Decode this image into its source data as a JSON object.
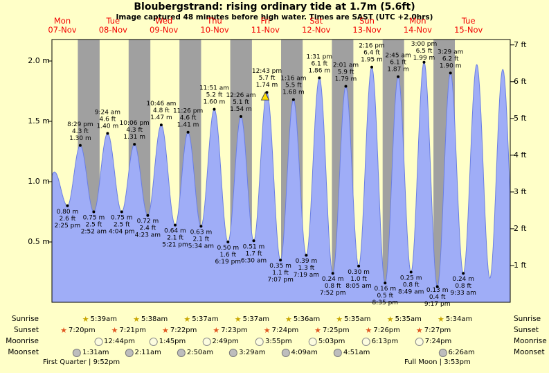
{
  "title": "Bloubergstrand: rising  ordinary tide at 1.7m (5.6ft)",
  "subtitle": "Image captured 48 minutes before high water. Times are SAST (UTC +2.0hrs)",
  "colors": {
    "background": "#ffffc8",
    "night_band": "#a0a0a0",
    "tide_fill": "#9fadf7",
    "tide_stroke": "#6b7fe3",
    "day_label": "#f20000",
    "current_marker": "#ffe000"
  },
  "days": [
    {
      "name": "Mon",
      "date": "07-Nov"
    },
    {
      "name": "Tue",
      "date": "08-Nov"
    },
    {
      "name": "Wed",
      "date": "09-Nov"
    },
    {
      "name": "Thu",
      "date": "10-Nov"
    },
    {
      "name": "Fri",
      "date": "11-Nov"
    },
    {
      "name": "Sat",
      "date": "12-Nov"
    },
    {
      "name": "Sun",
      "date": "13-Nov"
    },
    {
      "name": "Mon",
      "date": "14-Nov"
    },
    {
      "name": "Tue",
      "date": "15-Nov"
    }
  ],
  "y_axis_left": {
    "unit": "m",
    "ticks": [
      {
        "label": "0.5 m",
        "value": 0.5
      },
      {
        "label": "1.0 m",
        "value": 1.0
      },
      {
        "label": "1.5 m",
        "value": 1.5
      },
      {
        "label": "2.0 m",
        "value": 2.0
      }
    ]
  },
  "y_axis_right": {
    "unit": "ft",
    "ticks": [
      {
        "label": "1 ft",
        "value": 1
      },
      {
        "label": "2 ft",
        "value": 2
      },
      {
        "label": "3 ft",
        "value": 3
      },
      {
        "label": "4 ft",
        "value": 4
      },
      {
        "label": "5 ft",
        "value": 5
      },
      {
        "label": "6 ft",
        "value": 6
      },
      {
        "label": "7 ft",
        "value": 7
      }
    ]
  },
  "chart_data": {
    "type": "area",
    "title": "Bloubergstrand tide height, Mon 07-Nov to Tue 15-Nov",
    "series_name": "tide height",
    "x_unit": "hours since Mon 07-Nov 00:00 SAST",
    "x_range": [
      7.1,
      223.7
    ],
    "ylim_m": [
      0,
      2.18
    ],
    "ylim_ft": [
      0,
      7.15
    ],
    "night_shading": "grey vertical bands between each sunset and next sunrise",
    "tide_events": [
      {
        "type": "low",
        "day": "Mon 07-Nov",
        "time": "2:25 pm",
        "t": 14.42,
        "height_m": 0.8,
        "height_ft": 2.6,
        "lines": [
          "0.80 m",
          "2.6 ft",
          "2:25 pm"
        ]
      },
      {
        "type": "high",
        "day": "Mon 07-Nov",
        "time": "8:29 pm",
        "t": 20.48,
        "height_m": 1.3,
        "height_ft": 4.3,
        "lines": [
          "8:29 pm",
          "4.3 ft",
          "1.30 m"
        ]
      },
      {
        "type": "low",
        "day": "Tue 08-Nov",
        "time": "2:52 am",
        "t": 26.87,
        "height_m": 0.75,
        "height_ft": 2.5,
        "lines": [
          "0.75 m",
          "2.5 ft",
          "2:52 am"
        ]
      },
      {
        "type": "high",
        "day": "Tue 08-Nov",
        "time": "9:24 am",
        "t": 33.4,
        "height_m": 1.4,
        "height_ft": 4.6,
        "lines": [
          "9:24 am",
          "4.6 ft",
          "1.40 m"
        ]
      },
      {
        "type": "low",
        "day": "Tue 08-Nov",
        "time": "4:04 pm",
        "t": 40.07,
        "height_m": 0.75,
        "height_ft": 2.5,
        "lines": [
          "0.75 m",
          "2.5 ft",
          "4:04 pm"
        ]
      },
      {
        "type": "high",
        "day": "Tue 08-Nov",
        "time": "10:06 pm",
        "t": 46.1,
        "height_m": 1.31,
        "height_ft": 4.3,
        "lines": [
          "10:06 pm",
          "4.3 ft",
          "1.31 m"
        ]
      },
      {
        "type": "low",
        "day": "Wed 09-Nov",
        "time": "4:23 am",
        "t": 52.38,
        "height_m": 0.72,
        "height_ft": 2.4,
        "lines": [
          "0.72 m",
          "2.4 ft",
          "4:23 am"
        ]
      },
      {
        "type": "high",
        "day": "Wed 09-Nov",
        "time": "10:46 am",
        "t": 58.77,
        "height_m": 1.47,
        "height_ft": 4.8,
        "lines": [
          "10:46 am",
          "4.8 ft",
          "1.47 m"
        ]
      },
      {
        "type": "low",
        "day": "Wed 09-Nov",
        "time": "5:21 pm",
        "t": 65.35,
        "height_m": 0.64,
        "height_ft": 2.1,
        "lines": [
          "0.64 m",
          "2.1 ft",
          "5:21 pm"
        ]
      },
      {
        "type": "high",
        "day": "Wed 09-Nov",
        "time": "11:26 pm",
        "t": 71.43,
        "height_m": 1.41,
        "height_ft": 4.6,
        "lines": [
          "11:26 pm",
          "4.6 ft",
          "1.41 m"
        ]
      },
      {
        "type": "low",
        "day": "Thu 10-Nov",
        "time": "5:34 am",
        "t": 77.57,
        "height_m": 0.63,
        "height_ft": 2.1,
        "lines": [
          "0.63 m",
          "2.1 ft",
          "5:34 am"
        ]
      },
      {
        "type": "high",
        "day": "Thu 10-Nov",
        "time": "11:51 am",
        "t": 83.85,
        "height_m": 1.6,
        "height_ft": 5.2,
        "lines": [
          "11:51 am",
          "5.2 ft",
          "1.60 m"
        ]
      },
      {
        "type": "low",
        "day": "Thu 10-Nov",
        "time": "6:19 pm",
        "t": 90.32,
        "height_m": 0.5,
        "height_ft": 1.6,
        "lines": [
          "0.50 m",
          "1.6 ft",
          "6:19 pm"
        ]
      },
      {
        "type": "high",
        "day": "Fri 11-Nov",
        "time": "12:26 am",
        "t": 96.43,
        "height_m": 1.54,
        "height_ft": 5.1,
        "lines": [
          "12:26 am",
          "5.1 ft",
          "1.54 m"
        ]
      },
      {
        "type": "low",
        "day": "Fri 11-Nov",
        "time": "6:30 am",
        "t": 102.5,
        "height_m": 0.51,
        "height_ft": 1.7,
        "lines": [
          "0.51 m",
          "1.7 ft",
          "6:30 am"
        ]
      },
      {
        "type": "high",
        "day": "Fri 11-Nov",
        "time": "12:43 pm",
        "t": 108.72,
        "height_m": 1.74,
        "height_ft": 5.7,
        "lines": [
          "12:43 pm",
          "5.7 ft",
          "1.74 m"
        ],
        "current": true
      },
      {
        "type": "low",
        "day": "Fri 11-Nov",
        "time": "7:07 pm",
        "t": 115.12,
        "height_m": 0.35,
        "height_ft": 1.1,
        "lines": [
          "0.35 m",
          "1.1 ft",
          "7:07 pm"
        ]
      },
      {
        "type": "high",
        "day": "Sat 12-Nov",
        "time": "1:16 am",
        "t": 121.27,
        "height_m": 1.68,
        "height_ft": 5.5,
        "lines": [
          "1:16 am",
          "5.5 ft",
          "1.68 m"
        ]
      },
      {
        "type": "low",
        "day": "Sat 12-Nov",
        "time": "7:19 am",
        "t": 127.32,
        "height_m": 0.39,
        "height_ft": 1.3,
        "lines": [
          "0.39 m",
          "1.3 ft",
          "7:19 am"
        ]
      },
      {
        "type": "high",
        "day": "Sat 12-Nov",
        "time": "1:31 pm",
        "t": 133.52,
        "height_m": 1.86,
        "height_ft": 6.1,
        "lines": [
          "1:31 pm",
          "6.1 ft",
          "1.86 m"
        ]
      },
      {
        "type": "low",
        "day": "Sat 12-Nov",
        "time": "7:52 pm",
        "t": 139.87,
        "height_m": 0.24,
        "height_ft": 0.8,
        "lines": [
          "0.24 m",
          "0.8 ft",
          "7:52 pm"
        ]
      },
      {
        "type": "high",
        "day": "Sun 13-Nov",
        "time": "2:01 am",
        "t": 146.02,
        "height_m": 1.79,
        "height_ft": 5.9,
        "lines": [
          "2:01 am",
          "5.9 ft",
          "1.79 m"
        ]
      },
      {
        "type": "low",
        "day": "Sun 13-Nov",
        "time": "8:05 am",
        "t": 152.08,
        "height_m": 0.3,
        "height_ft": 1.0,
        "lines": [
          "0.30 m",
          "1.0 ft",
          "8:05 am"
        ]
      },
      {
        "type": "high",
        "day": "Sun 13-Nov",
        "time": "2:16 pm",
        "t": 158.27,
        "height_m": 1.95,
        "height_ft": 6.4,
        "lines": [
          "2:16 pm",
          "6.4 ft",
          "1.95 m"
        ]
      },
      {
        "type": "low",
        "day": "Sun 13-Nov",
        "time": "8:35 pm",
        "t": 164.58,
        "height_m": 0.16,
        "height_ft": 0.5,
        "lines": [
          "0.16 m",
          "0.5 ft",
          "8:35 pm"
        ]
      },
      {
        "type": "high",
        "day": "Mon 14-Nov",
        "time": "2:45 am",
        "t": 170.75,
        "height_m": 1.87,
        "height_ft": 6.1,
        "lines": [
          "2:45 am",
          "6.1 ft",
          "1.87 m"
        ]
      },
      {
        "type": "low",
        "day": "Mon 14-Nov",
        "time": "8:49 am",
        "t": 176.82,
        "height_m": 0.25,
        "height_ft": 0.8,
        "lines": [
          "0.25 m",
          "0.8 ft",
          "8:49 am"
        ]
      },
      {
        "type": "high",
        "day": "Mon 14-Nov",
        "time": "3:00 pm",
        "t": 183.0,
        "height_m": 1.99,
        "height_ft": 6.5,
        "lines": [
          "3:00 pm",
          "6.5 ft",
          "1.99 m"
        ]
      },
      {
        "type": "low",
        "day": "Mon 14-Nov",
        "time": "9:17 pm",
        "t": 189.28,
        "height_m": 0.13,
        "height_ft": 0.4,
        "lines": [
          "0.13 m",
          "0.4 ft",
          "9:17 pm"
        ]
      },
      {
        "type": "high",
        "day": "Tue 15-Nov",
        "time": "3:29 am",
        "t": 195.48,
        "height_m": 1.9,
        "height_ft": 6.2,
        "lines": [
          "3:29 am",
          "6.2 ft",
          "1.90 m"
        ]
      },
      {
        "type": "low",
        "day": "Tue 15-Nov",
        "time": "9:33 am",
        "t": 201.55,
        "height_m": 0.24,
        "height_ft": 0.8,
        "lines": [
          "0.24 m",
          "0.8 ft",
          "9:33 am"
        ]
      }
    ],
    "edge_points": [
      {
        "t": 2.17,
        "h": 0.75
      },
      {
        "t": 8.3,
        "h": 1.08
      },
      {
        "t": 207.9,
        "h": 1.97
      },
      {
        "t": 214.1,
        "h": 0.2
      },
      {
        "t": 220.2,
        "h": 1.93
      }
    ],
    "current_marker": {
      "t": 107.9,
      "height_m": 1.7,
      "symbol": "triangle",
      "note": "current tide level 1.7m, 48 minutes before high water"
    }
  },
  "sun_moon": {
    "rows": [
      {
        "id": "sunrise",
        "label": "Sunrise",
        "icon": "sunrise-star",
        "events": [
          {
            "time": "5:39am",
            "t": 29.65
          },
          {
            "time": "5:38am",
            "t": 53.63
          },
          {
            "time": "5:37am",
            "t": 77.62
          },
          {
            "time": "5:37am",
            "t": 101.62
          },
          {
            "time": "5:36am",
            "t": 125.6
          },
          {
            "time": "5:35am",
            "t": 149.58
          },
          {
            "time": "5:35am",
            "t": 173.58
          },
          {
            "time": "5:34am",
            "t": 197.57
          }
        ]
      },
      {
        "id": "sunset",
        "label": "Sunset",
        "icon": "sunset-star",
        "events": [
          {
            "time": "7:20pm",
            "t": 19.33
          },
          {
            "time": "7:21pm",
            "t": 43.35
          },
          {
            "time": "7:22pm",
            "t": 67.37
          },
          {
            "time": "7:23pm",
            "t": 91.38
          },
          {
            "time": "7:24pm",
            "t": 115.4
          },
          {
            "time": "7:25pm",
            "t": 139.42
          },
          {
            "time": "7:26pm",
            "t": 163.43
          },
          {
            "time": "7:27pm",
            "t": 187.45
          }
        ]
      },
      {
        "id": "moonrise",
        "label": "Moonrise",
        "icon": "moonrise-circle",
        "events": [
          {
            "time": "12:44pm",
            "t": 36.73
          },
          {
            "time": "1:45pm",
            "t": 61.75
          },
          {
            "time": "2:49pm",
            "t": 86.82
          },
          {
            "time": "3:55pm",
            "t": 111.92
          },
          {
            "time": "5:03pm",
            "t": 137.05
          },
          {
            "time": "6:13pm",
            "t": 162.22
          },
          {
            "time": "7:24pm",
            "t": 187.4
          }
        ]
      },
      {
        "id": "moonset",
        "label": "Moonset",
        "icon": "moonset-circle",
        "events": [
          {
            "time": "1:31am",
            "t": 25.52
          },
          {
            "time": "2:11am",
            "t": 50.18
          },
          {
            "time": "2:50am",
            "t": 74.83
          },
          {
            "time": "3:29am",
            "t": 99.48
          },
          {
            "time": "4:09am",
            "t": 124.15
          },
          {
            "time": "4:51am",
            "t": 148.85
          },
          {
            "time": "6:26am",
            "t": 198.43
          }
        ]
      }
    ]
  },
  "footer": {
    "left": "First Quarter | 9:52pm",
    "right": "Full Moon | 3:53pm"
  }
}
